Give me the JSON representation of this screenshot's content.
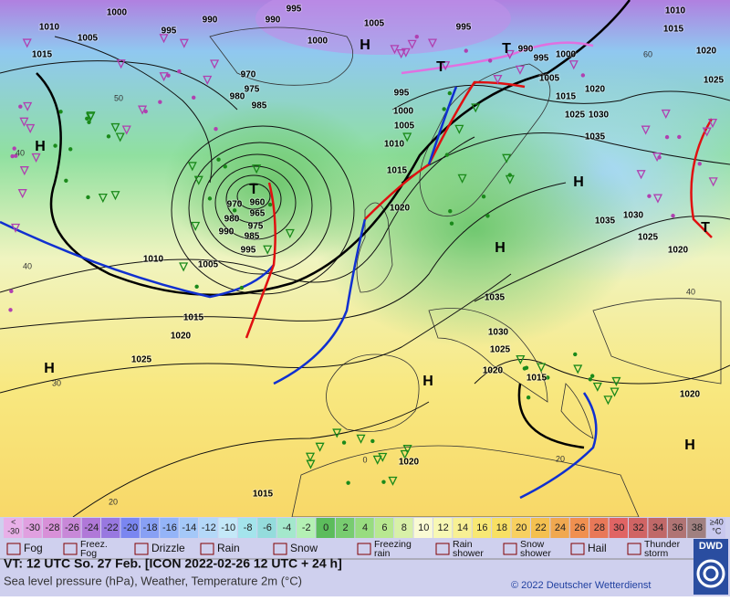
{
  "map": {
    "pressure_labels": [
      "1000",
      "990",
      "990",
      "995",
      "1005",
      "995",
      "1010",
      "1015",
      "1010",
      "1005",
      "1015",
      "995",
      "1000",
      "990",
      "995",
      "1000",
      "1005",
      "1020",
      "1015",
      "1025",
      "1030",
      "1035",
      "995",
      "1000",
      "1005",
      "1010",
      "1015",
      "1020",
      "970",
      "975",
      "980",
      "985",
      "970",
      "960",
      "965",
      "980",
      "975",
      "990",
      "985",
      "995",
      "1010",
      "1005",
      "1015",
      "1020",
      "1025",
      "1035",
      "1030",
      "1025",
      "1020",
      "1015",
      "1020",
      "1030",
      "1035",
      "1025",
      "1020",
      "1020",
      "1015",
      "1020",
      "1025"
    ],
    "highs": [
      "H",
      "H",
      "H",
      "H",
      "H",
      "H",
      "H"
    ],
    "lows": [
      "T",
      "T",
      "T",
      "T"
    ],
    "temperature_labels": [
      "50",
      "40",
      "40",
      "30",
      "20",
      "20",
      "0",
      "60",
      "40"
    ]
  },
  "temperature_scale": [
    {
      "label": [
        "<",
        "-30"
      ],
      "color": "#e8b0e8"
    },
    {
      "label": [
        "-30"
      ],
      "color": "#e0a0e0"
    },
    {
      "label": [
        "-28"
      ],
      "color": "#d890d8"
    },
    {
      "label": [
        "-26"
      ],
      "color": "#c888d8"
    },
    {
      "label": [
        "-24"
      ],
      "color": "#b078d8"
    },
    {
      "label": [
        "-22"
      ],
      "color": "#9878e0"
    },
    {
      "label": [
        "-20"
      ],
      "color": "#7a86f0"
    },
    {
      "label": [
        "-18"
      ],
      "color": "#88a0f4"
    },
    {
      "label": [
        "-16"
      ],
      "color": "#94b4f8"
    },
    {
      "label": [
        "-14"
      ],
      "color": "#a4c8f8"
    },
    {
      "label": [
        "-12"
      ],
      "color": "#b4d8f8"
    },
    {
      "label": [
        "-10"
      ],
      "color": "#c4e8f8"
    },
    {
      "label": [
        "-8"
      ],
      "color": "#a4e4ec"
    },
    {
      "label": [
        "-6"
      ],
      "color": "#94dcdc"
    },
    {
      "label": [
        "-4"
      ],
      "color": "#a4e8cc"
    },
    {
      "label": [
        "-2"
      ],
      "color": "#b4f0b4"
    },
    {
      "label": [
        "0"
      ],
      "color": "#5cbc5c"
    },
    {
      "label": [
        "2"
      ],
      "color": "#78cc70"
    },
    {
      "label": [
        "4"
      ],
      "color": "#98dc80"
    },
    {
      "label": [
        "6"
      ],
      "color": "#b8e890"
    },
    {
      "label": [
        "8"
      ],
      "color": "#d8f0a8"
    },
    {
      "label": [
        "10"
      ],
      "color": "#fafad4"
    },
    {
      "label": [
        "12"
      ],
      "color": "#f8f8b4"
    },
    {
      "label": [
        "14"
      ],
      "color": "#f8f094"
    },
    {
      "label": [
        "16"
      ],
      "color": "#f8e874"
    },
    {
      "label": [
        "18"
      ],
      "color": "#f8e064"
    },
    {
      "label": [
        "20"
      ],
      "color": "#f8d060"
    },
    {
      "label": [
        "22"
      ],
      "color": "#f4c050"
    },
    {
      "label": [
        "24"
      ],
      "color": "#f0a850"
    },
    {
      "label": [
        "26"
      ],
      "color": "#f09050"
    },
    {
      "label": [
        "28"
      ],
      "color": "#e87858"
    },
    {
      "label": [
        "30"
      ],
      "color": "#e06464"
    },
    {
      "label": [
        "32"
      ],
      "color": "#d06464"
    },
    {
      "label": [
        "34"
      ],
      "color": "#c06868"
    },
    {
      "label": [
        "36"
      ],
      "color": "#b07474"
    },
    {
      "label": [
        "38"
      ],
      "color": "#a08080"
    },
    {
      "label": [
        "≥40",
        "°C"
      ],
      "color": "#c8c8ee"
    }
  ],
  "weather_legend": [
    {
      "label": [
        "Fog"
      ]
    },
    {
      "label": [
        "Freez.",
        "Fog"
      ]
    },
    {
      "label": [
        "Drizzle"
      ]
    },
    {
      "label": [
        "Rain"
      ]
    },
    {
      "label": [
        "Snow"
      ]
    },
    {
      "label": [
        "Freezing",
        "rain"
      ]
    },
    {
      "label": [
        "Rain",
        "shower"
      ]
    },
    {
      "label": [
        "Snow",
        "shower"
      ]
    },
    {
      "label": [
        "Hail"
      ]
    },
    {
      "label": [
        "Thunder",
        "storm"
      ]
    }
  ],
  "footer": {
    "valid_time": "VT: 12 UTC So.  27 Feb. [ICON 2022-02-26  12 UTC + 24 h]",
    "description": "Sea level pressure (hPa), Weather, Temperature 2m (°C)",
    "copyright": "© 2022 Deutscher Wetterdienst",
    "logo": "DWD"
  }
}
